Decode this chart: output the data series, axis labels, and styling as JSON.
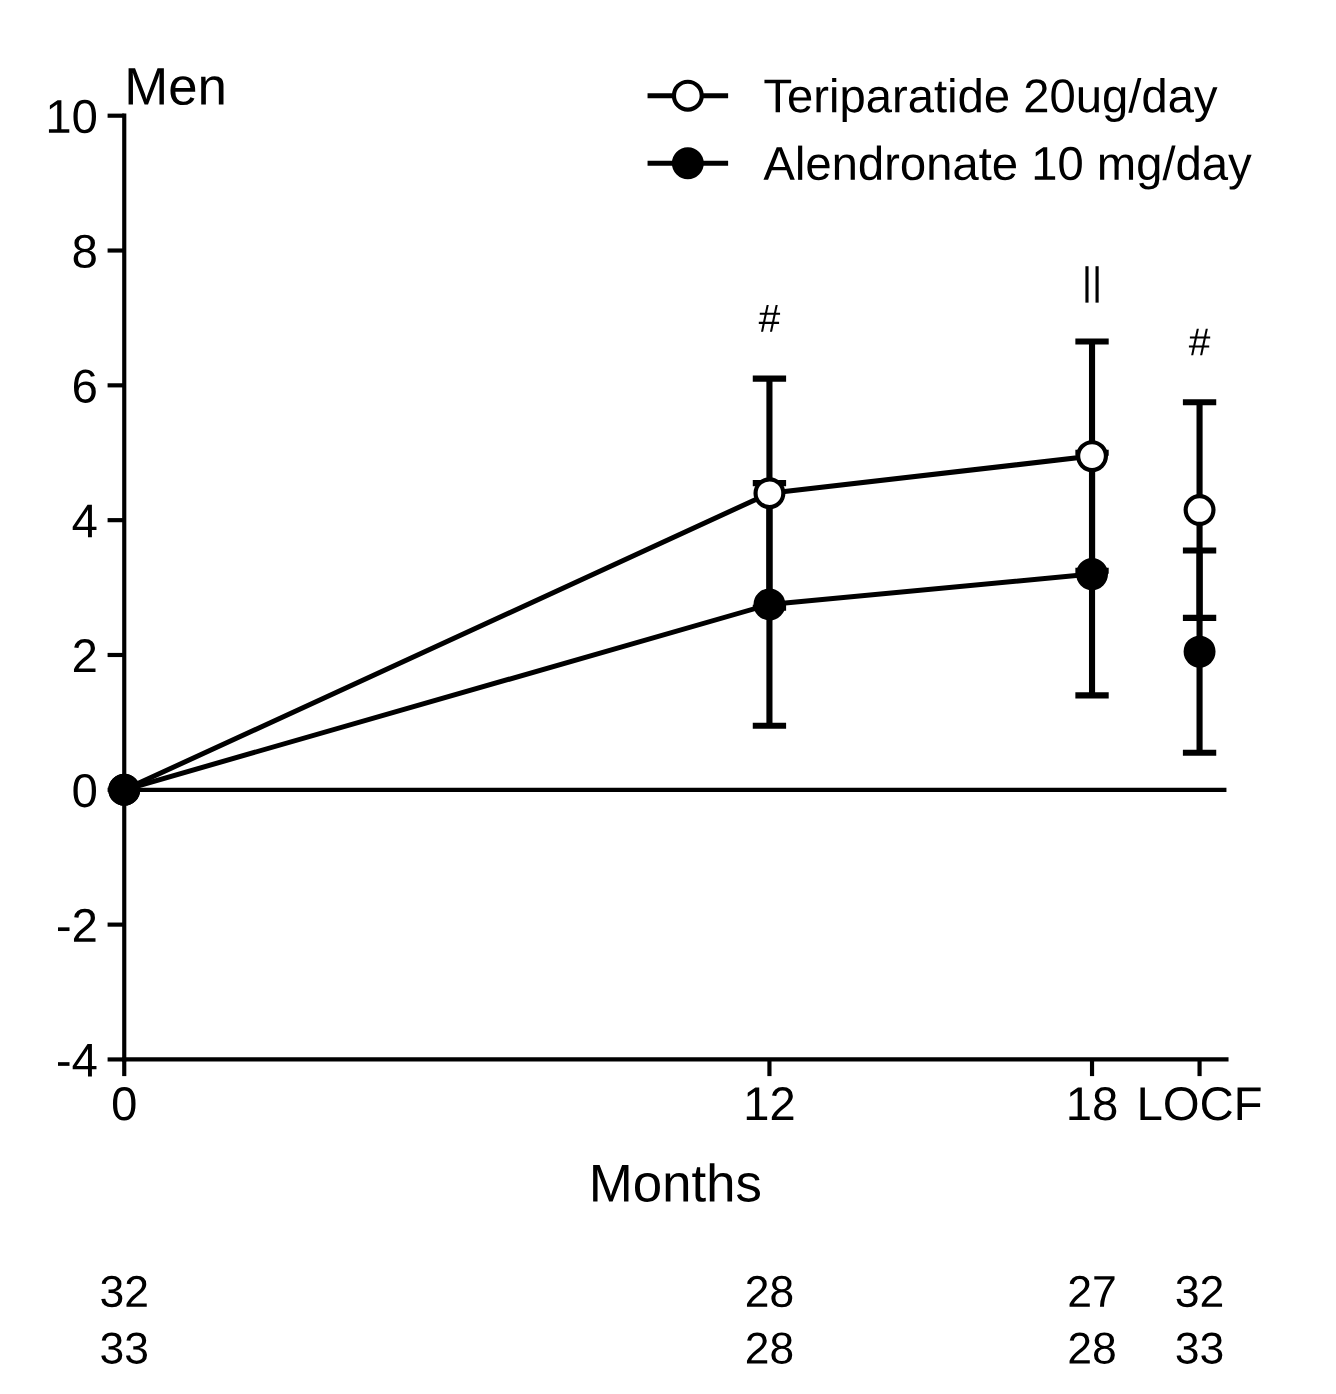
{
  "chart_data": {
    "type": "line",
    "title": "Men",
    "xlabel": "Months",
    "xlim": [
      0,
      20.5
    ],
    "ylim": [
      -4,
      10
    ],
    "yticks": [
      -4,
      -2,
      0,
      2,
      4,
      6,
      8,
      10
    ],
    "xticks": [
      0,
      12,
      18,
      {
        "value": 20,
        "label": "LOCF"
      }
    ],
    "series": [
      {
        "name": "Teriparatide 20ug/day",
        "color": "#000000",
        "x": [
          0,
          12,
          18
        ],
        "values": [
          0,
          4.4,
          4.95
        ],
        "errors": [
          null,
          1.7,
          1.7
        ]
      },
      {
        "name": "Alendronate 10 mg/day",
        "color": "#000000",
        "x": [
          0,
          12,
          18
        ],
        "values": [
          0,
          2.75,
          3.2
        ],
        "errors": [
          null,
          1.8,
          1.8
        ]
      },
      {
        "type": "scatter",
        "color": "#000000",
        "x": [
          20
        ],
        "values": [
          4.15
        ],
        "errors": [
          1.6
        ]
      },
      {
        "type": "scatter",
        "color": "#000000",
        "x": [
          20
        ],
        "values": [
          2.05
        ],
        "errors": [
          1.5
        ]
      }
    ],
    "ref_lines": [
      {
        "axis": "y",
        "value": 0,
        "color": "#000000"
      }
    ],
    "annotations": [
      "#",
      "||",
      "#",
      "32",
      "28",
      "27",
      "32",
      "33",
      "28",
      "28",
      "33"
    ],
    "marker": "circle",
    "legend": "top right",
    "grid": false
  }
}
